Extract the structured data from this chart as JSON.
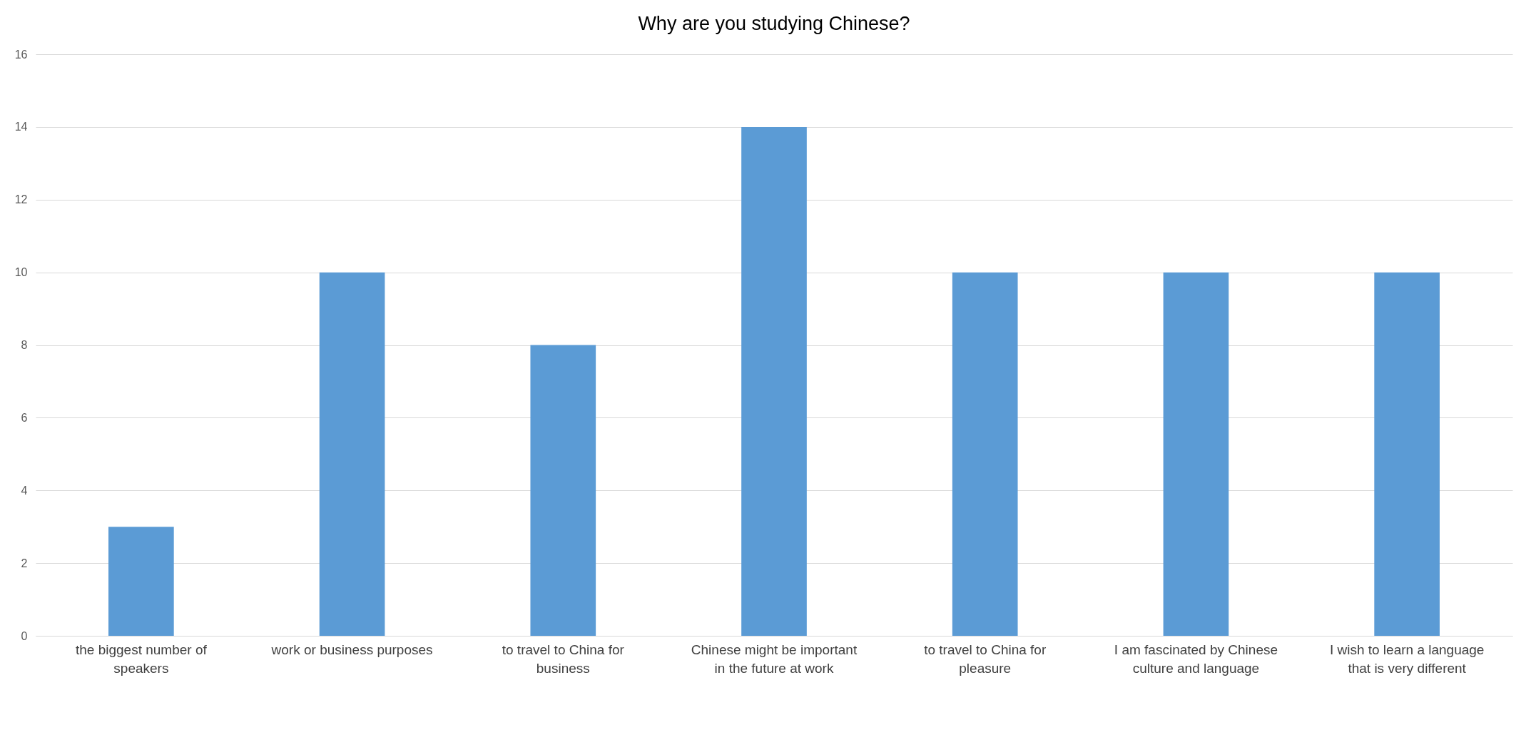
{
  "chart_data": {
    "type": "bar",
    "title": "Why are you studying Chinese?",
    "categories": [
      "the biggest number of speakers",
      "work or business purposes",
      "to travel to China for business",
      "Chinese might be important in the future at work",
      "to travel to China for pleasure",
      "I am fascinated by Chinese culture and language",
      "I wish to learn a language that is very different"
    ],
    "values": [
      3,
      10,
      8,
      14,
      10,
      10,
      10
    ],
    "color": "#5b9bd5",
    "ylim": [
      0,
      16
    ],
    "yticks": [
      0,
      2,
      4,
      6,
      8,
      10,
      12,
      14,
      16
    ],
    "grid": "y"
  }
}
